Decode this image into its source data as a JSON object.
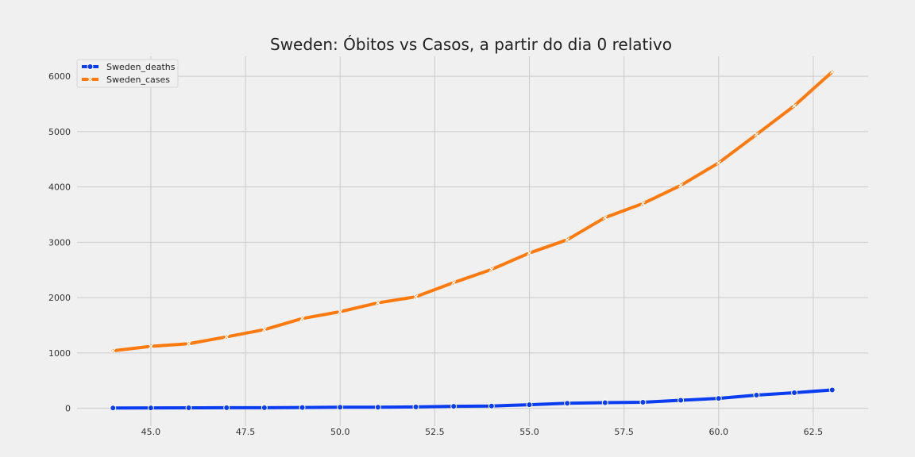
{
  "chart_data": {
    "type": "line",
    "title": "Sweden: Óbitos vs Casos, a partir do dia 0 relativo",
    "xlabel": "",
    "ylabel": "",
    "xlim": [
      43.05,
      63.95
    ],
    "ylim": [
      -320,
      6360
    ],
    "x_ticks": [
      45.0,
      47.5,
      50.0,
      52.5,
      55.0,
      57.5,
      60.0,
      62.5
    ],
    "x_tick_labels": [
      "45.0",
      "47.5",
      "50.0",
      "52.5",
      "55.0",
      "57.5",
      "60.0",
      "62.5"
    ],
    "y_ticks": [
      0,
      1000,
      2000,
      3000,
      4000,
      5000,
      6000
    ],
    "y_tick_labels": [
      "0",
      "1000",
      "2000",
      "3000",
      "4000",
      "5000",
      "6000"
    ],
    "grid": true,
    "legend_position": "top-left",
    "x": [
      44,
      45,
      46,
      47,
      48,
      49,
      50,
      51,
      52,
      53,
      54,
      55,
      56,
      57,
      58,
      59,
      60,
      61,
      62,
      63
    ],
    "series": [
      {
        "name": "Sweden_deaths",
        "color": "#0a3cf0",
        "marker": "circle",
        "values": [
          7,
          8,
          10,
          11,
          12,
          15,
          20,
          21,
          25,
          36,
          42,
          66,
          92,
          102,
          110,
          146,
          180,
          239,
          282,
          333
        ]
      },
      {
        "name": "Sweden_cases",
        "color": "#ff7a0e",
        "marker": "x",
        "values": [
          1040,
          1120,
          1167,
          1292,
          1423,
          1623,
          1746,
          1906,
          2016,
          2272,
          2510,
          2806,
          3046,
          3447,
          3700,
          4028,
          4435,
          4947,
          5466,
          6078
        ]
      }
    ]
  }
}
